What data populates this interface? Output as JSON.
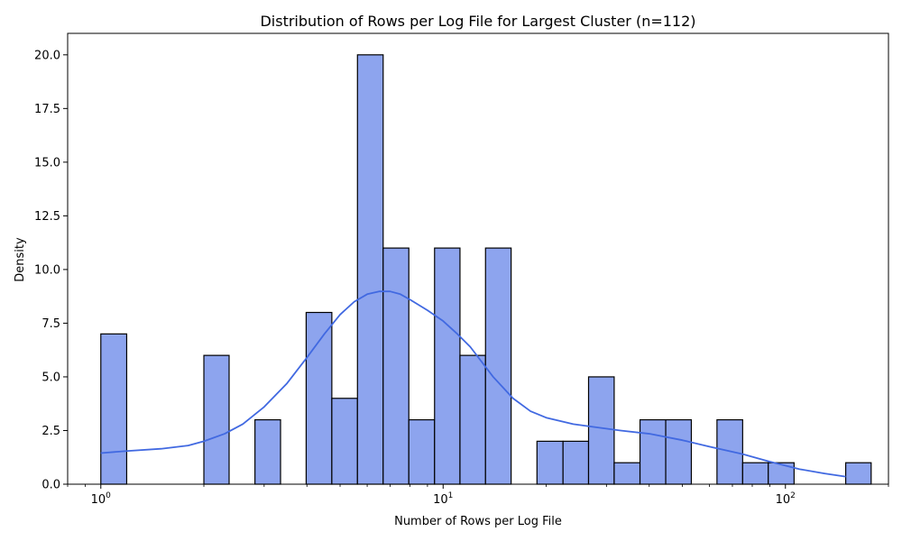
{
  "chart_data": {
    "type": "bar",
    "subtype": "histogram",
    "title": "Distribution of Rows per Log File for Largest Cluster (n=112)",
    "xlabel": "Number of Rows per Log File",
    "ylabel": "Density",
    "x_scale": "log",
    "xlim": [
      0.8,
      200
    ],
    "ylim": [
      0,
      21
    ],
    "yticks": [
      0.0,
      2.5,
      5.0,
      7.5,
      10.0,
      12.5,
      15.0,
      17.5,
      20.0
    ],
    "ytick_labels": [
      "0.0",
      "2.5",
      "5.0",
      "7.5",
      "10.0",
      "12.5",
      "15.0",
      "17.5",
      "20.0"
    ],
    "xticks": [
      1,
      10,
      100
    ],
    "xtick_labels": [
      {
        "base": "10",
        "exp": "0"
      },
      {
        "base": "10",
        "exp": "1"
      },
      {
        "base": "10",
        "exp": "2"
      }
    ],
    "grid": false,
    "bar_fill": "#8da4ee",
    "bar_edge": "#000000",
    "kde_color": "#4169e1",
    "bins": [
      {
        "x0": 1.0,
        "x1": 1.19,
        "value": 7
      },
      {
        "x0": 1.19,
        "x1": 1.41,
        "value": 0
      },
      {
        "x0": 1.41,
        "x1": 1.68,
        "value": 0
      },
      {
        "x0": 1.68,
        "x1": 2.0,
        "value": 0
      },
      {
        "x0": 2.0,
        "x1": 2.37,
        "value": 6
      },
      {
        "x0": 2.37,
        "x1": 2.82,
        "value": 0
      },
      {
        "x0": 2.82,
        "x1": 3.35,
        "value": 3
      },
      {
        "x0": 3.35,
        "x1": 3.98,
        "value": 0
      },
      {
        "x0": 3.98,
        "x1": 4.73,
        "value": 8
      },
      {
        "x0": 4.73,
        "x1": 5.62,
        "value": 4
      },
      {
        "x0": 5.62,
        "x1": 6.68,
        "value": 20
      },
      {
        "x0": 6.68,
        "x1": 7.94,
        "value": 11
      },
      {
        "x0": 7.94,
        "x1": 9.44,
        "value": 3
      },
      {
        "x0": 9.44,
        "x1": 11.2,
        "value": 11
      },
      {
        "x0": 11.2,
        "x1": 13.3,
        "value": 6
      },
      {
        "x0": 13.3,
        "x1": 15.8,
        "value": 11
      },
      {
        "x0": 15.8,
        "x1": 18.8,
        "value": 0
      },
      {
        "x0": 18.8,
        "x1": 22.4,
        "value": 2
      },
      {
        "x0": 22.4,
        "x1": 26.6,
        "value": 2
      },
      {
        "x0": 26.6,
        "x1": 31.6,
        "value": 5
      },
      {
        "x0": 31.6,
        "x1": 37.6,
        "value": 1
      },
      {
        "x0": 37.6,
        "x1": 44.7,
        "value": 3
      },
      {
        "x0": 44.7,
        "x1": 53.1,
        "value": 3
      },
      {
        "x0": 53.1,
        "x1": 63.1,
        "value": 0
      },
      {
        "x0": 63.1,
        "x1": 75.0,
        "value": 3
      },
      {
        "x0": 75.0,
        "x1": 89.1,
        "value": 1
      },
      {
        "x0": 89.1,
        "x1": 106.0,
        "value": 1
      },
      {
        "x0": 106.0,
        "x1": 126.0,
        "value": 0
      },
      {
        "x0": 126.0,
        "x1": 150.0,
        "value": 0
      },
      {
        "x0": 150.0,
        "x1": 178.0,
        "value": 1
      }
    ],
    "kde_curve": {
      "x": [
        1.0,
        1.2,
        1.5,
        1.8,
        2.0,
        2.3,
        2.6,
        3.0,
        3.5,
        4.0,
        4.5,
        5.0,
        5.5,
        6.0,
        6.5,
        7.0,
        7.5,
        8.0,
        9.0,
        10.0,
        11.0,
        12.0,
        14.0,
        16.0,
        18.0,
        20.0,
        24.0,
        28.0,
        33.0,
        40.0,
        50.0,
        60.0,
        75.0,
        90.0,
        110.0,
        130.0,
        150.0
      ],
      "y": [
        1.45,
        1.55,
        1.65,
        1.8,
        2.0,
        2.35,
        2.8,
        3.6,
        4.7,
        5.9,
        7.0,
        7.9,
        8.5,
        8.85,
        8.98,
        8.98,
        8.85,
        8.6,
        8.1,
        7.6,
        7.0,
        6.4,
        5.0,
        4.0,
        3.4,
        3.1,
        2.8,
        2.65,
        2.5,
        2.35,
        2.05,
        1.75,
        1.4,
        1.05,
        0.7,
        0.5,
        0.35
      ]
    }
  }
}
